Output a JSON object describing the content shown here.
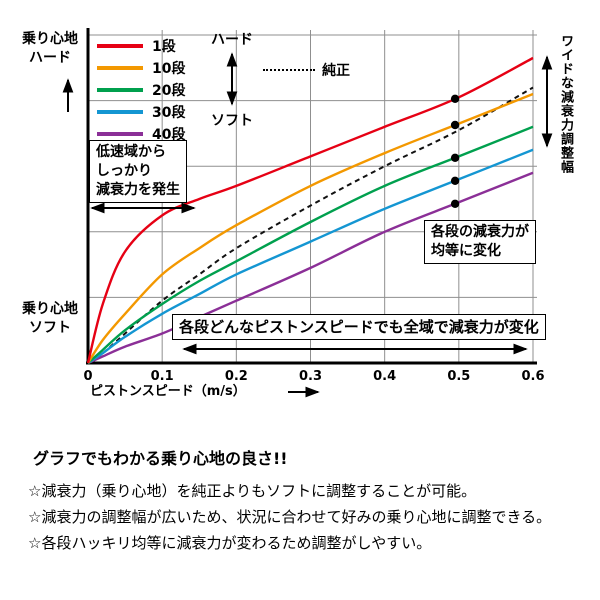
{
  "chart_data": {
    "type": "line",
    "title": "",
    "xlabel": "ピストンスピード（m/s）",
    "ylabel": "",
    "y_axis_top_label": "乗り心地\nハード",
    "y_axis_bottom_label": "乗り心地\nソフト",
    "xlim": [
      0,
      0.6
    ],
    "ylim": [
      0,
      100
    ],
    "x_ticks": [
      0,
      0.1,
      0.2,
      0.3,
      0.4,
      0.5,
      0.6
    ],
    "y_gridlines": [
      20,
      40,
      60,
      80,
      100
    ],
    "grid": true,
    "legend_position": "top-left",
    "legend_scale_top": "ハード",
    "legend_scale_bottom": "ソフト",
    "x": [
      0,
      0.02,
      0.05,
      0.1,
      0.15,
      0.2,
      0.3,
      0.4,
      0.5,
      0.6
    ],
    "series": [
      {
        "name": "1段",
        "color": "#e60014",
        "dashed": false,
        "values": [
          0,
          18,
          34,
          45,
          50,
          54,
          63,
          72,
          81,
          93
        ]
      },
      {
        "name": "10段",
        "color": "#f39800",
        "dashed": false,
        "values": [
          0,
          7,
          15,
          27,
          35,
          42,
          54,
          64,
          73,
          82
        ]
      },
      {
        "name": "20段",
        "color": "#00a04e",
        "dashed": false,
        "values": [
          0,
          4,
          10,
          18,
          25,
          31,
          43,
          54,
          63,
          72
        ]
      },
      {
        "name": "30段",
        "color": "#1496d2",
        "dashed": false,
        "values": [
          0,
          3,
          8,
          15,
          21,
          27,
          37,
          47,
          56,
          65
        ]
      },
      {
        "name": "40段",
        "color": "#8b2f97",
        "dashed": false,
        "values": [
          0,
          2,
          5,
          9,
          14,
          19,
          29,
          40,
          49,
          58
        ]
      },
      {
        "name": "純正",
        "color": "#111111",
        "dashed": true,
        "values": [
          0,
          3,
          9,
          19,
          27,
          35,
          48,
          60,
          71,
          84
        ]
      }
    ],
    "marker_x": 0.495,
    "marker_series": [
      "1段",
      "10段",
      "20段",
      "30段",
      "40段"
    ]
  },
  "annotations": {
    "low_speed": "低速域から\nしっかり\n減衰力を発生",
    "equal_step": "各段の減衰力が\n均等に変化",
    "full_range": "各段どんなピストンスピードでも全域で減衰力が変化",
    "wide_adjust": "ワイドな減衰力調整幅"
  },
  "footer": {
    "title": "グラフでもわかる乗り心地の良さ!!",
    "bullets": [
      "☆減衰力（乗り心地）を純正よりもソフトに調整することが可能。",
      "☆減衰力の調整幅が広いため、状況に合わせて好みの乗り心地に調整できる。",
      "☆各段ハッキリ均等に減衰力が変わるため調整がしやすい。"
    ]
  }
}
